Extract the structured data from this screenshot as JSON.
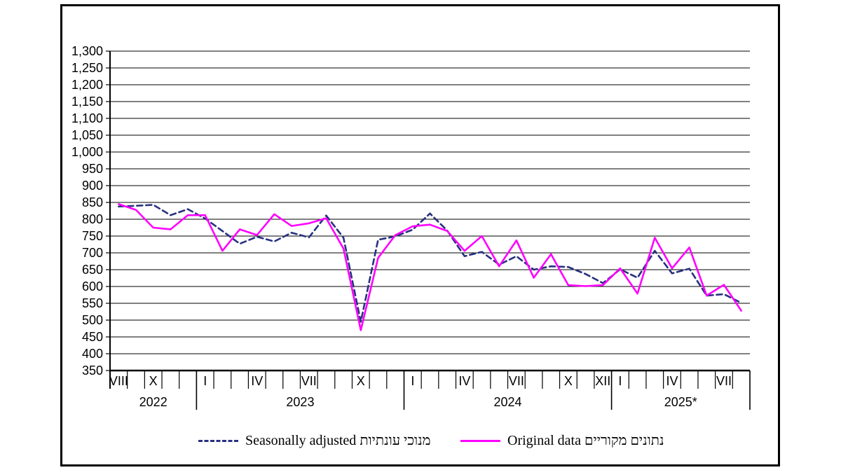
{
  "page": {
    "background": "#ffffff",
    "frame_border_color": "#000000"
  },
  "chart_data": {
    "type": "line",
    "x_months": [
      "2022-08",
      "2022-09",
      "2022-10",
      "2022-11",
      "2022-12",
      "2023-01",
      "2023-02",
      "2023-03",
      "2023-04",
      "2023-05",
      "2023-06",
      "2023-07",
      "2023-08",
      "2023-09",
      "2023-10",
      "2023-11",
      "2023-12",
      "2024-01",
      "2024-02",
      "2024-03",
      "2024-04",
      "2024-05",
      "2024-06",
      "2024-07",
      "2024-08",
      "2024-09",
      "2024-10",
      "2024-11",
      "2024-12",
      "2025-01",
      "2025-02",
      "2025-03",
      "2025-04",
      "2025-05",
      "2025-06",
      "2025-07",
      "2025-08"
    ],
    "series": [
      {
        "name": "Seasonally adjusted מנוכי עונתיות",
        "color": "#283180",
        "style": "dashed",
        "values": [
          838,
          840,
          843,
          812,
          830,
          802,
          765,
          727,
          748,
          734,
          760,
          746,
          811,
          745,
          495,
          739,
          749,
          769,
          817,
          766,
          690,
          703,
          665,
          690,
          650,
          660,
          658,
          637,
          610,
          651,
          626,
          706,
          639,
          653,
          573,
          577,
          551
        ]
      },
      {
        "name": "Original data נתונים מקוריים",
        "color": "#ff00ff",
        "style": "solid",
        "values": [
          845,
          828,
          775,
          770,
          812,
          812,
          706,
          770,
          753,
          815,
          780,
          788,
          803,
          713,
          470,
          685,
          753,
          779,
          784,
          765,
          706,
          750,
          660,
          737,
          626,
          696,
          604,
          601,
          604,
          654,
          579,
          745,
          654,
          716,
          573,
          605,
          528
        ]
      }
    ],
    "ylim": [
      350,
      1300
    ],
    "ytick_step": 50,
    "grid": true,
    "axis_color": "#000000",
    "month_tick_labels": [
      {
        "index": 0,
        "label": "VIII"
      },
      {
        "index": 2,
        "label": "X"
      },
      {
        "index": 5,
        "label": "I"
      },
      {
        "index": 8,
        "label": "IV"
      },
      {
        "index": 11,
        "label": "VII"
      },
      {
        "index": 14,
        "label": "X"
      },
      {
        "index": 17,
        "label": "I"
      },
      {
        "index": 20,
        "label": "IV"
      },
      {
        "index": 23,
        "label": "VII"
      },
      {
        "index": 26,
        "label": "X"
      },
      {
        "index": 28,
        "label": "XII"
      },
      {
        "index": 29,
        "label": "I"
      },
      {
        "index": 32,
        "label": "IV"
      },
      {
        "index": 35,
        "label": "VII"
      }
    ],
    "year_spans": [
      {
        "label": "2022",
        "from": 0,
        "to": 4
      },
      {
        "label": "2023",
        "from": 5,
        "to": 16
      },
      {
        "label": "2024",
        "from": 17,
        "to": 28
      },
      {
        "label": "2025*",
        "from": 29,
        "to": 36
      }
    ],
    "legend_position": "bottom"
  }
}
